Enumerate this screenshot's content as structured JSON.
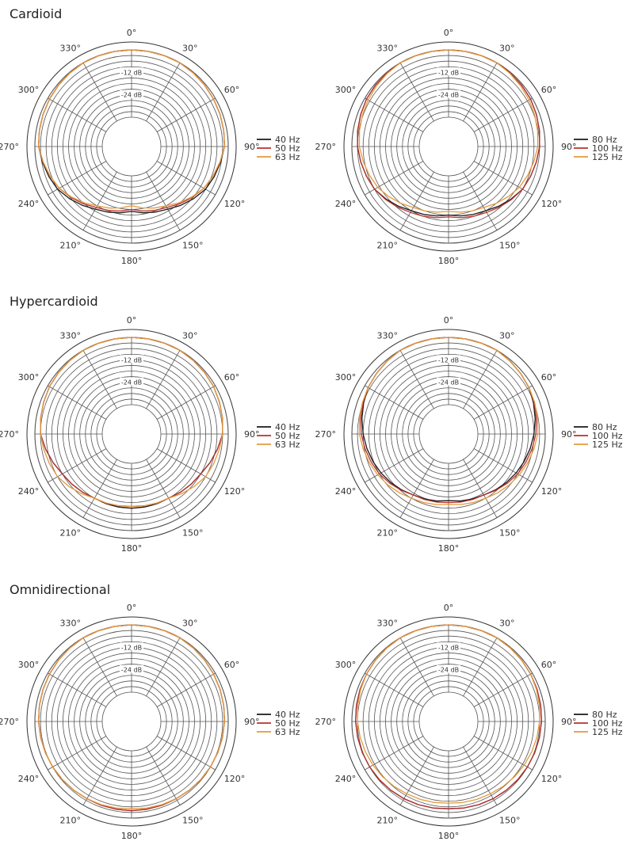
{
  "sections": [
    {
      "title": "Cardioid"
    },
    {
      "title": "Hypercardioid"
    },
    {
      "title": "Omnidirectional"
    }
  ],
  "chart_data": [
    {
      "type": "polar",
      "pattern": "Cardioid",
      "group": "low",
      "angle_ticks": [
        "0°",
        "30°",
        "60°",
        "90°",
        "120°",
        "150°",
        "180°",
        "210°",
        "240°",
        "270°",
        "300°",
        "330°"
      ],
      "ring_labels": [
        "-12 dB",
        "-24 dB"
      ],
      "series": [
        {
          "name": "40 Hz",
          "color": "#1a1a1a",
          "values": [
            0,
            0,
            -1,
            -2,
            -6,
            -13,
            -17,
            -13,
            -6,
            -2,
            -1,
            0
          ]
        },
        {
          "name": "50 Hz",
          "color": "#b8312f",
          "values": [
            0,
            0,
            -1,
            -2,
            -7,
            -14,
            -18,
            -14,
            -7,
            -2,
            -1,
            0
          ]
        },
        {
          "name": "63 Hz",
          "color": "#e39a3d",
          "values": [
            0,
            0,
            -1,
            -2,
            -7,
            -15,
            -20,
            -15,
            -7,
            -2,
            -1,
            0
          ]
        }
      ]
    },
    {
      "type": "polar",
      "pattern": "Cardioid",
      "group": "mid",
      "angle_ticks": [
        "0°",
        "30°",
        "60°",
        "90°",
        "120°",
        "150°",
        "180°",
        "210°",
        "240°",
        "270°",
        "300°",
        "330°"
      ],
      "ring_labels": [
        "-12 dB",
        "-24 dB"
      ],
      "series": [
        {
          "name": "80 Hz",
          "color": "#1a1a1a",
          "values": [
            0,
            0,
            -1,
            -3,
            -6,
            -12,
            -15,
            -12,
            -6,
            -3,
            -1,
            0
          ]
        },
        {
          "name": "100 Hz",
          "color": "#b8312f",
          "values": [
            0,
            0,
            -1,
            -3,
            -6,
            -11,
            -14,
            -11,
            -6,
            -3,
            -1,
            0
          ]
        },
        {
          "name": "125 Hz",
          "color": "#e39a3d",
          "values": [
            0,
            0,
            -2,
            -4,
            -8,
            -14,
            -17,
            -14,
            -8,
            -4,
            -2,
            0
          ]
        }
      ]
    },
    {
      "type": "polar",
      "pattern": "Hypercardioid",
      "group": "low",
      "angle_ticks": [
        "0°",
        "30°",
        "60°",
        "90°",
        "120°",
        "150°",
        "180°",
        "210°",
        "240°",
        "270°",
        "300°",
        "330°"
      ],
      "ring_labels": [
        "-12 dB",
        "-24 dB"
      ],
      "series": [
        {
          "name": "40 Hz",
          "color": "#1a1a1a",
          "values": [
            0,
            0,
            -1,
            -3,
            -9,
            -12,
            -12,
            -12,
            -9,
            -3,
            -1,
            0
          ]
        },
        {
          "name": "50 Hz",
          "color": "#b8312f",
          "values": [
            0,
            0,
            -1,
            -3,
            -9,
            -12,
            -13,
            -12,
            -9,
            -3,
            -1,
            0
          ]
        },
        {
          "name": "63 Hz",
          "color": "#e39a3d",
          "values": [
            0,
            0,
            -1,
            -3,
            -6,
            -12,
            -13,
            -12,
            -6,
            -3,
            -1,
            0
          ]
        }
      ]
    },
    {
      "type": "polar",
      "pattern": "Hypercardioid",
      "group": "mid",
      "angle_ticks": [
        "0°",
        "30°",
        "60°",
        "90°",
        "120°",
        "150°",
        "180°",
        "210°",
        "240°",
        "270°",
        "300°",
        "330°"
      ],
      "ring_labels": [
        "-12 dB",
        "-24 dB"
      ],
      "series": [
        {
          "name": "80 Hz",
          "color": "#1a1a1a",
          "values": [
            0,
            0,
            -2,
            -6,
            -10,
            -14,
            -16,
            -14,
            -10,
            -6,
            -2,
            0
          ]
        },
        {
          "name": "100 Hz",
          "color": "#b8312f",
          "values": [
            0,
            0,
            -2,
            -5,
            -9,
            -14,
            -15,
            -14,
            -9,
            -5,
            -2,
            0
          ]
        },
        {
          "name": "125 Hz",
          "color": "#e39a3d",
          "values": [
            0,
            0,
            -2,
            -4,
            -8,
            -12,
            -14,
            -12,
            -8,
            -4,
            -2,
            0
          ]
        }
      ]
    },
    {
      "type": "polar",
      "pattern": "Omnidirectional",
      "group": "low",
      "angle_ticks": [
        "0°",
        "30°",
        "60°",
        "90°",
        "120°",
        "150°",
        "180°",
        "210°",
        "240°",
        "270°",
        "300°",
        "330°"
      ],
      "ring_labels": [
        "-12 dB",
        "-24 dB"
      ],
      "series": [
        {
          "name": "40 Hz",
          "color": "#1a1a1a",
          "values": [
            0,
            0,
            -1,
            -2,
            -3,
            -4,
            -4,
            -4,
            -3,
            -2,
            -1,
            0
          ]
        },
        {
          "name": "50 Hz",
          "color": "#b8312f",
          "values": [
            0,
            0,
            -1,
            -2,
            -3,
            -4,
            -4,
            -4,
            -3,
            -2,
            -1,
            0
          ]
        },
        {
          "name": "63 Hz",
          "color": "#e39a3d",
          "values": [
            0,
            0,
            -1,
            -2,
            -3,
            -4,
            -5,
            -4,
            -3,
            -2,
            -1,
            0
          ]
        }
      ]
    },
    {
      "type": "polar",
      "pattern": "Omnidirectional",
      "group": "mid",
      "angle_ticks": [
        "0°",
        "30°",
        "60°",
        "90°",
        "120°",
        "150°",
        "180°",
        "210°",
        "240°",
        "270°",
        "300°",
        "330°"
      ],
      "ring_labels": [
        "-12 dB",
        "-24 dB"
      ],
      "series": [
        {
          "name": "80 Hz",
          "color": "#1a1a1a",
          "values": [
            0,
            0,
            -1,
            -2,
            -3,
            -4,
            -5,
            -4,
            -3,
            -2,
            -1,
            0
          ]
        },
        {
          "name": "100 Hz",
          "color": "#b8312f",
          "values": [
            0,
            0,
            -1,
            -2,
            -3,
            -4,
            -5,
            -4,
            -3,
            -2,
            -1,
            0
          ]
        },
        {
          "name": "125 Hz",
          "color": "#e39a3d",
          "values": [
            0,
            0,
            -1,
            -3,
            -5,
            -7,
            -8,
            -7,
            -5,
            -3,
            -1,
            0
          ]
        }
      ]
    }
  ]
}
